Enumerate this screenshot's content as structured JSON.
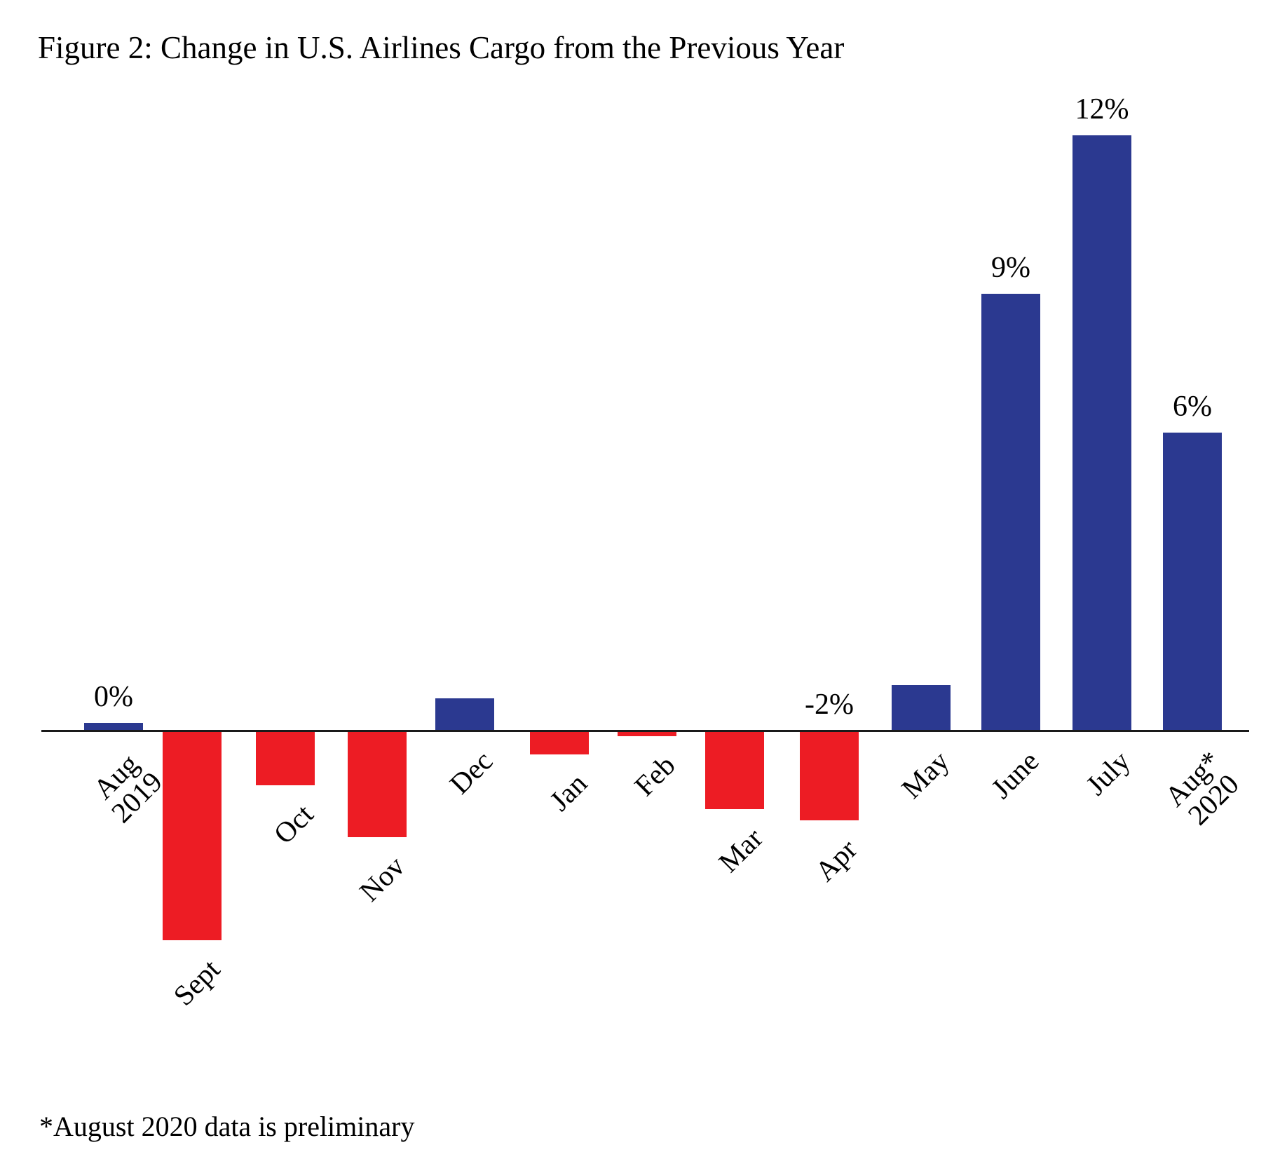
{
  "chart_data": {
    "type": "bar",
    "title": "Figure 2: Change in U.S. Airlines Cargo from the Previous Year",
    "footnote": "*August 2020 data is preliminary",
    "categories": [
      "Aug\n2019",
      "Sept",
      "Oct",
      "Nov",
      "Dec",
      "Jan",
      "Feb",
      "Mar",
      "Apr",
      "May",
      "June",
      "July",
      "Aug*\n2020"
    ],
    "values": [
      0.16,
      -4.2,
      -1.07,
      -2.12,
      0.65,
      -0.45,
      -0.08,
      -1.55,
      -1.78,
      0.92,
      8.8,
      12.0,
      6.0
    ],
    "data_labels": [
      "0%",
      "",
      "",
      "",
      "",
      "",
      "",
      "",
      "-2%",
      "",
      "9%",
      "12%",
      "6%"
    ],
    "positive_color": "#2B3990",
    "negative_color": "#ED1C24",
    "axis_color": "#1a1a1a",
    "ylim": [
      -5,
      12.5
    ],
    "xlabel": "",
    "ylabel": "",
    "grid": false,
    "legend": false,
    "y_axis_shown": false,
    "axis_label_rotation_deg": -45
  }
}
